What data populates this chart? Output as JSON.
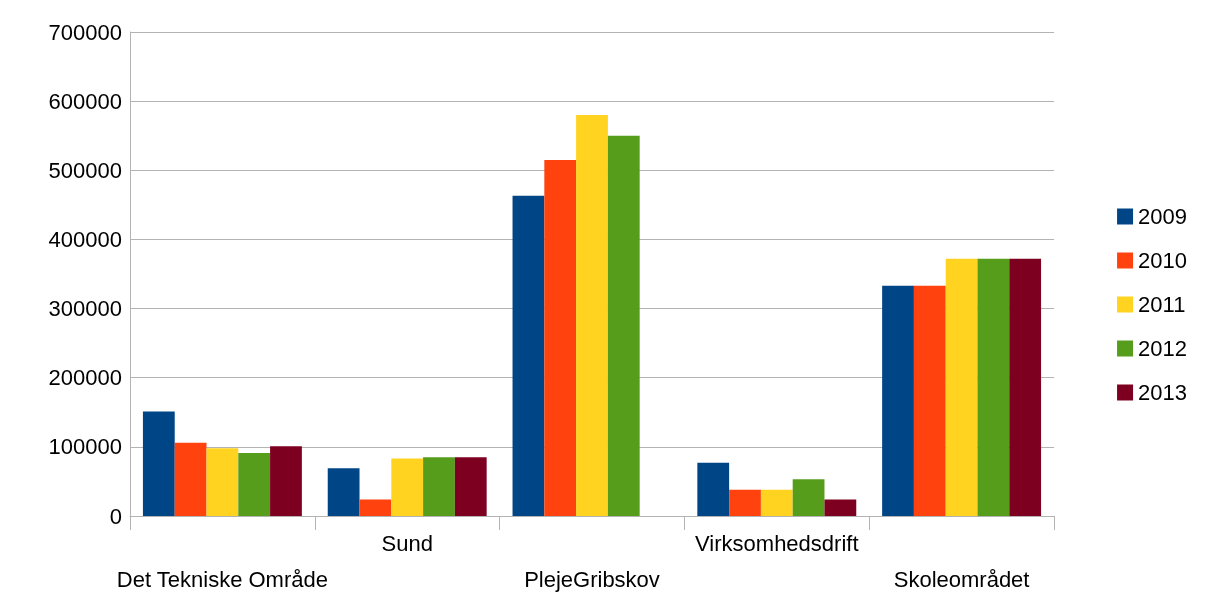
{
  "chart_data": {
    "type": "bar",
    "categories": [
      "Det Tekniske Område",
      "Sund",
      "PlejeGribskov",
      "Virksomhedsdrift",
      "Skoleområdet"
    ],
    "series": [
      {
        "name": "2009",
        "color": "#004586",
        "values": [
          151000,
          69000,
          463000,
          77000,
          333000
        ]
      },
      {
        "name": "2010",
        "color": "#ff420e",
        "values": [
          106000,
          24000,
          515000,
          38000,
          333000
        ]
      },
      {
        "name": "2011",
        "color": "#ffd320",
        "values": [
          98000,
          83000,
          580000,
          38000,
          372000
        ]
      },
      {
        "name": "2012",
        "color": "#579d1c",
        "values": [
          91000,
          85000,
          550000,
          53000,
          372000
        ]
      },
      {
        "name": "2013",
        "color": "#7e0021",
        "values": [
          101000,
          85000,
          null,
          24000,
          372000
        ]
      }
    ],
    "ylim": [
      0,
      700000
    ],
    "yticks": [
      0,
      100000,
      200000,
      300000,
      400000,
      500000,
      600000,
      700000
    ],
    "grid": "y",
    "legend": "right"
  }
}
